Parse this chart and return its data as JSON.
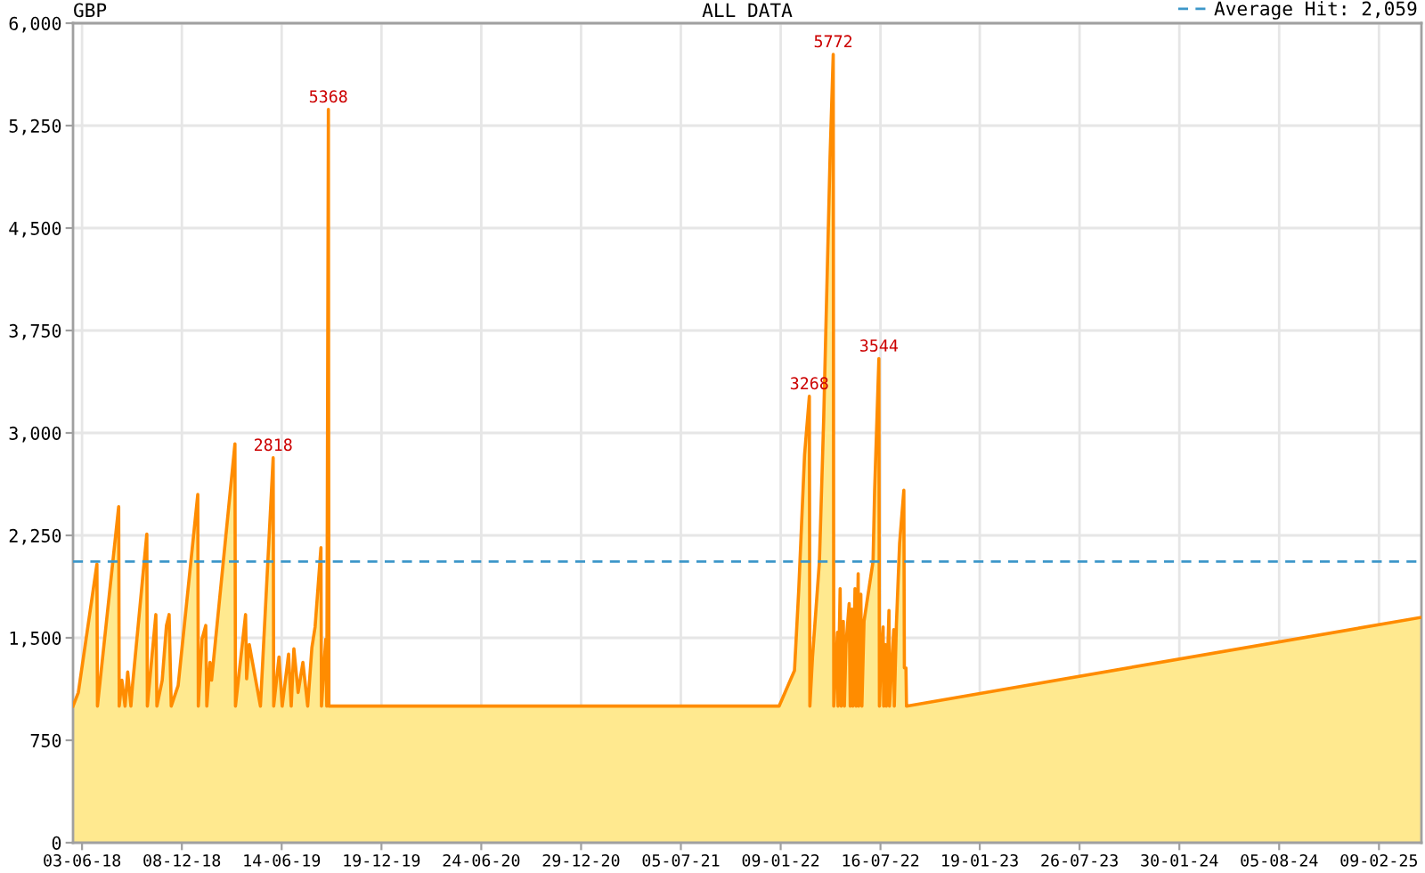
{
  "chart_data": {
    "type": "area",
    "title": "GBP",
    "subtitle": "ALL DATA",
    "x": [
      "2018-05-17",
      "2018-05-27",
      "2018-07-01",
      "2018-07-02",
      "2018-08-11",
      "2018-08-12",
      "2018-08-17",
      "2018-08-23",
      "2018-08-28",
      "2018-09-03",
      "2018-09-06",
      "2018-10-03",
      "2018-10-04",
      "2018-10-20",
      "2018-10-22",
      "2018-11-01",
      "2018-11-09",
      "2018-11-14",
      "2018-11-18",
      "2018-12-01",
      "2019-01-07",
      "2019-01-08",
      "2019-01-15",
      "2019-01-22",
      "2019-01-24",
      "2019-01-30",
      "2019-02-02",
      "2019-03-18",
      "2019-03-19",
      "2019-04-07",
      "2019-04-09",
      "2019-04-14",
      "2019-05-05",
      "2019-05-07",
      "2019-05-29",
      "2019-05-30",
      "2019-06-09",
      "2019-06-15",
      "2019-06-27",
      "2019-07-02",
      "2019-07-07",
      "2019-07-15",
      "2019-07-24",
      "2019-08-02",
      "2019-08-10",
      "2019-08-16",
      "2019-08-27",
      "2019-08-28",
      "2019-09-05",
      "2019-09-07",
      "2019-09-10",
      "2019-09-11",
      "2022-01-06",
      "2022-02-04",
      "2022-02-12",
      "2022-02-23",
      "2022-03-04",
      "2022-03-05",
      "2022-03-10",
      "2022-03-23",
      "2022-03-31",
      "2022-04-06",
      "2022-04-12",
      "2022-04-18",
      "2022-04-19",
      "2022-04-26",
      "2022-04-27",
      "2022-05-01",
      "2022-05-03",
      "2022-05-07",
      "2022-05-09",
      "2022-05-12",
      "2022-05-18",
      "2022-05-20",
      "2022-05-23",
      "2022-05-25",
      "2022-05-29",
      "2022-05-31",
      "2022-06-04",
      "2022-06-05",
      "2022-06-09",
      "2022-06-11",
      "2022-06-15",
      "2022-06-20",
      "2022-07-02",
      "2022-07-05",
      "2022-07-13",
      "2022-07-14",
      "2022-07-18",
      "2022-07-21",
      "2022-07-22",
      "2022-07-25",
      "2022-07-27",
      "2022-08-01",
      "2022-08-02",
      "2022-08-10",
      "2022-08-11",
      "2022-08-15",
      "2022-08-21",
      "2022-08-29",
      "2022-08-30",
      "2022-09-02",
      "2022-09-03",
      "2025-04-30"
    ],
    "series": [
      {
        "color": "#ffe98f",
        "values": [
          1000,
          1100,
          2040,
          1000,
          2460,
          1000,
          1190,
          1000,
          1250,
          1000,
          1150,
          2260,
          1000,
          1670,
          1000,
          1190,
          1590,
          1670,
          1000,
          1150,
          2550,
          1000,
          1490,
          1590,
          1000,
          1320,
          1190,
          2920,
          1000,
          1670,
          1200,
          1450,
          1000,
          1150,
          2818,
          1000,
          1360,
          1000,
          1380,
          1000,
          1420,
          1100,
          1320,
          1000,
          1430,
          1580,
          2160,
          1000,
          1490,
          1000,
          5368,
          1000,
          1000,
          1260,
          1850,
          2840,
          3268,
          1000,
          1360,
          2060,
          3100,
          4060,
          5020,
          5772,
          1000,
          1540,
          1000,
          1860,
          1000,
          1620,
          1000,
          1450,
          1750,
          1000,
          1710,
          1000,
          1860,
          1000,
          1970,
          1000,
          1820,
          1000,
          1620,
          1750,
          2060,
          2580,
          3544,
          1000,
          1450,
          1580,
          1000,
          1450,
          1000,
          1700,
          1000,
          1560,
          1000,
          1600,
          2190,
          2580,
          1280,
          1280,
          1000,
          1650
        ],
        "value_labels": [
          null,
          null,
          null,
          null,
          null,
          null,
          null,
          null,
          null,
          null,
          null,
          null,
          null,
          null,
          null,
          null,
          null,
          null,
          null,
          null,
          null,
          null,
          null,
          null,
          null,
          null,
          null,
          null,
          null,
          null,
          null,
          null,
          null,
          null,
          "2818",
          null,
          null,
          null,
          null,
          null,
          null,
          null,
          null,
          null,
          null,
          null,
          null,
          null,
          null,
          null,
          "5368",
          null,
          null,
          null,
          null,
          null,
          "3268",
          null,
          null,
          null,
          null,
          null,
          null,
          "5772",
          null,
          null,
          null,
          null,
          null,
          null,
          null,
          null,
          null,
          null,
          null,
          null,
          null,
          null,
          null,
          null,
          null,
          null,
          null,
          null,
          null,
          null,
          "3544",
          null,
          null,
          null,
          null,
          null,
          null,
          null,
          null,
          null,
          null,
          null,
          null,
          null,
          null,
          null,
          null,
          null
        ]
      }
    ],
    "xlim": [
      "2018-05-17",
      "2025-04-30"
    ],
    "xticks": [
      {
        "value": "2018-06-03",
        "label": "03-06-18"
      },
      {
        "value": "2018-12-08",
        "label": "08-12-18"
      },
      {
        "value": "2019-06-14",
        "label": "14-06-19"
      },
      {
        "value": "2019-12-19",
        "label": "19-12-19"
      },
      {
        "value": "2020-06-24",
        "label": "24-06-20"
      },
      {
        "value": "2020-12-29",
        "label": "29-12-20"
      },
      {
        "value": "2021-07-05",
        "label": "05-07-21"
      },
      {
        "value": "2022-01-09",
        "label": "09-01-22"
      },
      {
        "value": "2022-07-16",
        "label": "16-07-22"
      },
      {
        "value": "2023-01-19",
        "label": "19-01-23"
      },
      {
        "value": "2023-07-26",
        "label": "26-07-23"
      },
      {
        "value": "2024-01-30",
        "label": "30-01-24"
      },
      {
        "value": "2024-08-05",
        "label": "05-08-24"
      },
      {
        "value": "2025-02-09",
        "label": "09-02-25"
      }
    ],
    "ylim": [
      0,
      6000
    ],
    "yticks": [
      0,
      750,
      {
        "value": 1500,
        "label": "1,500"
      },
      {
        "value": 2250,
        "label": "2,250"
      },
      {
        "value": 3000,
        "label": "3,000"
      },
      {
        "value": 3750,
        "label": "3,750"
      },
      {
        "value": 4500,
        "label": "4,500"
      },
      {
        "value": 5250,
        "label": "5,250"
      },
      {
        "value": 6000,
        "label": "6,000"
      }
    ],
    "grid": true,
    "legend": "top right",
    "ref_lines": [
      {
        "axis": "y",
        "value": 2059,
        "label": "Average Hit: 2,059",
        "color": "#3d97c9",
        "line_style": "dashed"
      }
    ]
  }
}
